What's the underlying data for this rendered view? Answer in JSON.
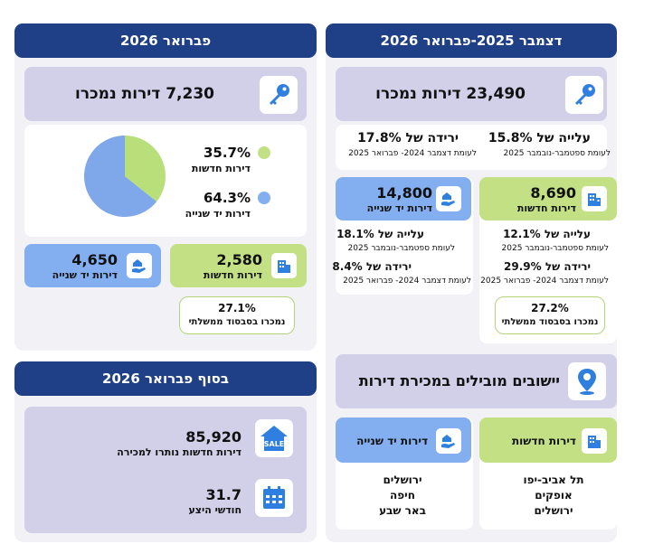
{
  "right": {
    "header": "דצמבר 2025-פברואר 2026",
    "sold_total": "23,490 דירות נמכרו",
    "rise_title": "עלייה של 15.8%",
    "rise_sub": "לעומת ספטמבר-נובמבר 2025",
    "drop_title": "ירידה של 17.8%",
    "drop_sub": "לעומת דצמבר 2024- פברואר 2025",
    "new": {
      "value": "8,690",
      "label": "דירות חדשות",
      "rise_title": "עלייה של 12.1%",
      "rise_sub": "לעומת ספטמבר-נובמבר 2025",
      "drop_title": "ירידה של 29.9%",
      "drop_sub": "לעומת דצמבר 2024- פברואר 2025",
      "subsidy_value": "27.2%",
      "subsidy_label": "נמכרו בסבסוד ממשלתי"
    },
    "used": {
      "value": "14,800",
      "label": "דירות יד שנייה",
      "rise_title": "עלייה של 18.1%",
      "rise_sub": "לעומת ספטמבר-נובמבר 2025",
      "drop_title": "ירידה של 8.4%",
      "drop_sub": "לעומת דצמבר 2024- פברואר 2025"
    },
    "leading": {
      "title": "יישובים מובילים במכירת דירות",
      "new_label": "דירות חדשות",
      "new_cities": [
        "תל אביב-יפו",
        "אופקים",
        "ירושלים"
      ],
      "used_label": "דירות יד שנייה",
      "used_cities": [
        "ירושלים",
        "חיפה",
        "באר שבע"
      ]
    }
  },
  "left": {
    "header": "פברואר 2026",
    "sold_total": "7,230 דירות נמכרו",
    "pie": {
      "new_pct": "35.7%",
      "new_label": "דירות חדשות",
      "used_pct": "64.3%",
      "used_label": "דירות יד שנייה"
    },
    "new": {
      "value": "2,580",
      "label": "דירות חדשות",
      "subsidy_value": "27.1%",
      "subsidy_label": "נמכרו בסבסוד ממשלתי"
    },
    "used": {
      "value": "4,650",
      "label": "דירות יד שנייה"
    },
    "end": {
      "header": "בסוף פברואר 2026",
      "unsold_value": "85,920",
      "unsold_label": "דירות חדשות נותרו למכירה",
      "months_value": "31.7",
      "months_label": "חודשי היצע"
    }
  },
  "colors": {
    "header": "#1f3f86",
    "lavender": "#d2cfe9",
    "green": "#c3e184",
    "blue": "#83aef0",
    "icon_blue": "#2f7fe0"
  },
  "chart_data": {
    "type": "pie",
    "categories": [
      "דירות חדשות",
      "דירות יד שנייה"
    ],
    "values": [
      35.7,
      64.3
    ],
    "colors": [
      "#b8df7a",
      "#7fa8ea"
    ]
  }
}
